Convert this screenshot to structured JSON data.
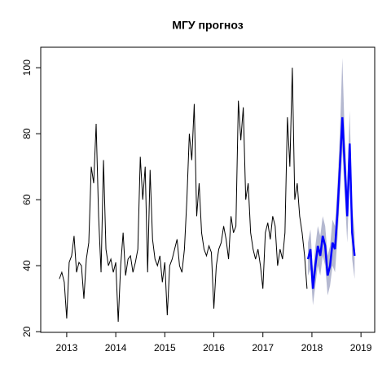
{
  "chart_data": {
    "type": "line",
    "title": "МГУ прогноз",
    "xlim": [
      2012.47,
      2019.28
    ],
    "ylim": [
      19.8,
      106.2
    ],
    "xticks": [
      2013,
      2014,
      2015,
      2016,
      2017,
      2018,
      2019
    ],
    "yticks": [
      20,
      40,
      60,
      80,
      100
    ],
    "series": [
      {
        "color": "#000000",
        "x": [
          2012.85,
          2012.9,
          2012.95,
          2013.0,
          2013.05,
          2013.1,
          2013.15,
          2013.2,
          2013.25,
          2013.3,
          2013.35,
          2013.4,
          2013.45,
          2013.5,
          2013.55,
          2013.6,
          2013.65,
          2013.7,
          2013.75,
          2013.8,
          2013.85,
          2013.9,
          2013.95,
          2014.0,
          2014.05,
          2014.1,
          2014.15,
          2014.2,
          2014.25,
          2014.3,
          2014.35,
          2014.4,
          2014.45,
          2014.5,
          2014.55,
          2014.6,
          2014.65,
          2014.7,
          2014.75,
          2014.8,
          2014.85,
          2014.9,
          2014.95,
          2015.0,
          2015.05,
          2015.1,
          2015.15,
          2015.2,
          2015.25,
          2015.3,
          2015.35,
          2015.4,
          2015.45,
          2015.5,
          2015.55,
          2015.6,
          2015.65,
          2015.7,
          2015.75,
          2015.8,
          2015.85,
          2015.9,
          2015.95,
          2016.0,
          2016.05,
          2016.1,
          2016.15,
          2016.2,
          2016.25,
          2016.3,
          2016.35,
          2016.4,
          2016.45,
          2016.5,
          2016.55,
          2016.6,
          2016.65,
          2016.7,
          2016.75,
          2016.8,
          2016.85,
          2016.9,
          2016.95,
          2017.0,
          2017.05,
          2017.1,
          2017.15,
          2017.2,
          2017.25,
          2017.3,
          2017.35,
          2017.4,
          2017.45,
          2017.5,
          2017.55,
          2017.6,
          2017.65,
          2017.7,
          2017.75,
          2017.8,
          2017.85,
          2017.9
        ],
        "values": [
          36,
          38,
          35,
          24,
          41,
          43,
          49,
          38,
          41,
          40,
          30,
          42,
          47,
          70,
          65,
          83,
          55,
          38,
          72,
          45,
          40,
          42,
          38,
          41,
          23,
          40,
          50,
          37,
          42,
          43,
          38,
          41,
          45,
          73,
          60,
          70,
          38,
          69,
          48,
          42,
          40,
          43,
          35,
          41,
          25,
          40,
          42,
          45,
          48,
          40,
          38,
          45,
          60,
          80,
          72,
          89,
          55,
          65,
          50,
          45,
          43,
          46,
          44,
          27,
          40,
          45,
          47,
          52,
          48,
          42,
          55,
          50,
          52,
          90,
          78,
          88,
          60,
          65,
          50,
          45,
          42,
          45,
          40,
          33,
          50,
          53,
          48,
          55,
          52,
          40,
          45,
          42,
          50,
          85,
          70,
          100,
          60,
          65,
          55,
          50,
          43,
          33
        ]
      },
      {
        "color": "#0000ff",
        "x": [
          2017.92,
          2017.97,
          2018.02,
          2018.07,
          2018.12,
          2018.17,
          2018.22,
          2018.27,
          2018.32,
          2018.37,
          2018.42,
          2018.47,
          2018.52,
          2018.57,
          2018.62,
          2018.67,
          2018.72,
          2018.77,
          2018.82,
          2018.87
        ],
        "values": [
          42,
          45,
          33,
          40,
          46,
          43,
          49,
          46,
          37,
          40,
          47,
          45,
          56,
          70,
          85,
          70,
          55,
          77,
          50,
          43
        ],
        "lower": [
          37,
          39,
          28,
          34,
          40,
          37,
          43,
          40,
          31,
          34,
          40,
          38,
          48,
          61,
          75,
          61,
          47,
          67,
          42,
          36
        ],
        "upper": [
          47,
          51,
          38,
          46,
          52,
          49,
          55,
          52,
          43,
          46,
          54,
          52,
          64,
          80,
          103,
          79,
          63,
          87,
          58,
          50
        ],
        "band_color": "#b4b8d0"
      }
    ]
  }
}
